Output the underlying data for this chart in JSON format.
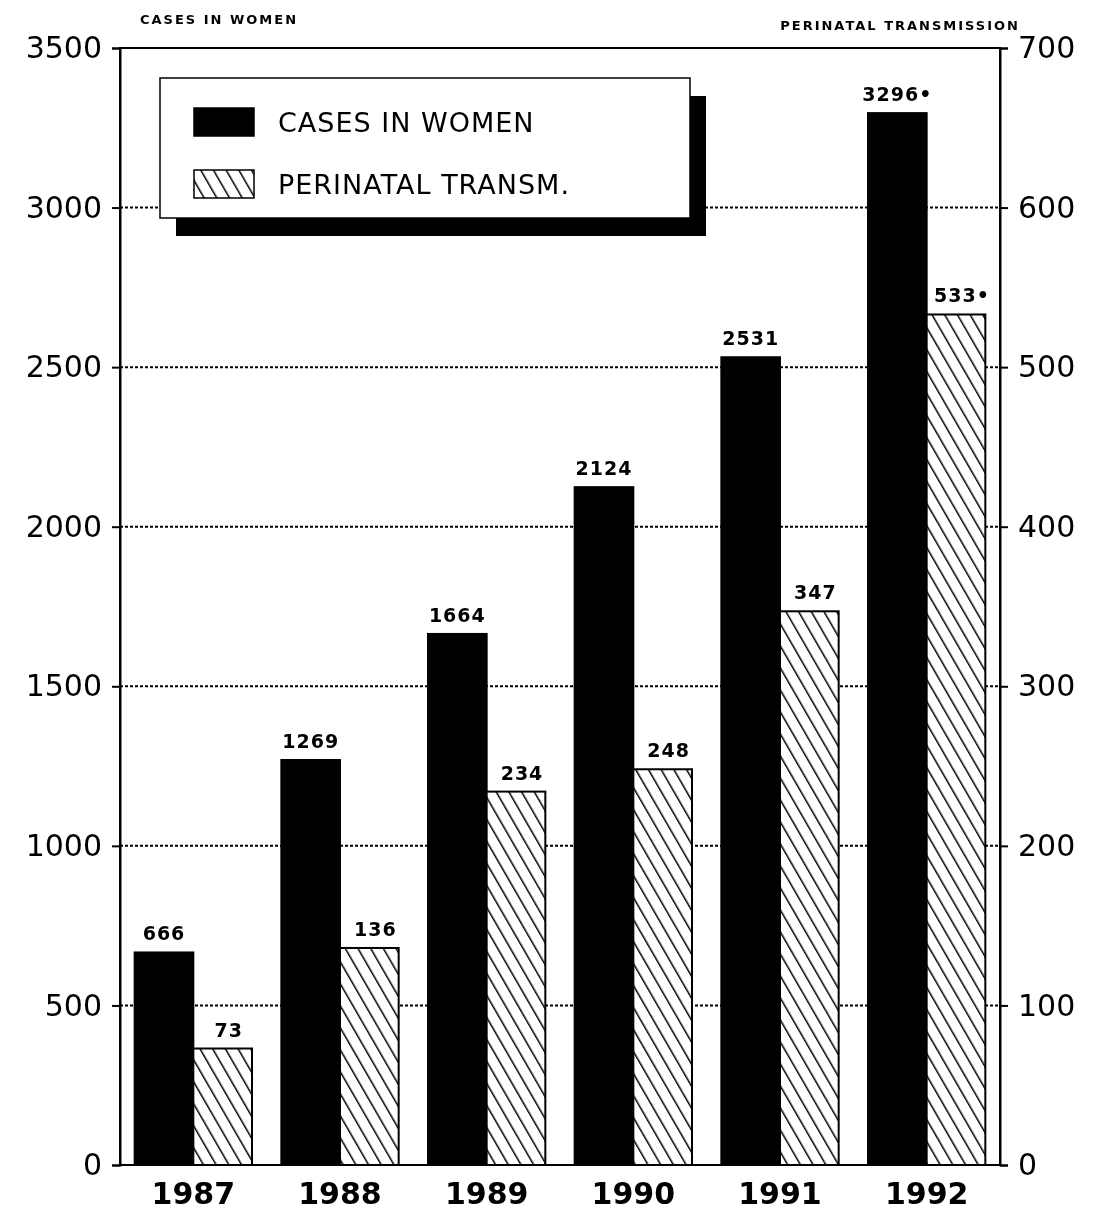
{
  "chart_data": {
    "type": "bar",
    "ylabel": "CASES IN WOMEN",
    "y2label": "PERINATAL TRANSMISSION",
    "categories": [
      "1987",
      "1988",
      "1989",
      "1990",
      "1991",
      "1992"
    ],
    "series": [
      {
        "name": "CASES IN WOMEN",
        "color": "#000000",
        "values": [
          666,
          1269,
          1664,
          2124,
          2531,
          3296
        ],
        "value_labels": [
          "666",
          "1269",
          "1664",
          "2124",
          "2531",
          "3296•"
        ]
      },
      {
        "name": "PERINATAL TRANSM.",
        "color": "#000000",
        "axis": "y2",
        "values": [
          73,
          136,
          234,
          248,
          347,
          533
        ],
        "value_labels": [
          "73",
          "136",
          "234",
          "248",
          "347",
          "533•"
        ]
      }
    ],
    "ylim": [
      0,
      3500
    ],
    "yticks": [
      0,
      500,
      1000,
      1500,
      2000,
      2500,
      3000,
      3500
    ],
    "y2lim": [
      0,
      700
    ],
    "y2ticks": [
      0,
      100,
      200,
      300,
      400,
      500,
      600,
      700
    ],
    "grid": "y",
    "legend": "top left"
  }
}
